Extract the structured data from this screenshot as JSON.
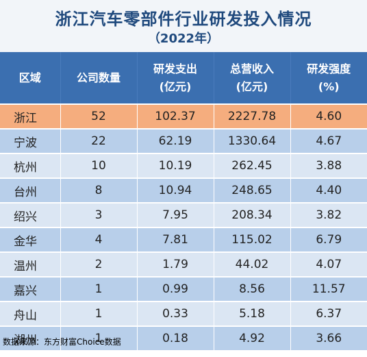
{
  "chart_data": {
    "type": "table",
    "title": "浙江汽车零部件行业研发投入情况",
    "subtitle": "（2022年）",
    "columns": [
      [
        "区域"
      ],
      [
        "公司数量"
      ],
      [
        "研发支出",
        "(亿元)"
      ],
      [
        "总营收入",
        "(亿元)"
      ],
      [
        "研发强度",
        "(%)"
      ]
    ],
    "rows": [
      [
        "浙江",
        "52",
        "102.37",
        "2227.78",
        "4.60"
      ],
      [
        "宁波",
        "22",
        "62.19",
        "1330.64",
        "4.67"
      ],
      [
        "杭州",
        "10",
        "10.19",
        "262.45",
        "3.88"
      ],
      [
        "台州",
        "8",
        "10.94",
        "248.65",
        "4.40"
      ],
      [
        "绍兴",
        "3",
        "7.95",
        "208.34",
        "3.82"
      ],
      [
        "金华",
        "4",
        "7.81",
        "115.02",
        "6.79"
      ],
      [
        "温州",
        "2",
        "1.79",
        "44.02",
        "4.07"
      ],
      [
        "嘉兴",
        "1",
        "0.99",
        "8.56",
        "11.57"
      ],
      [
        "舟山",
        "1",
        "0.33",
        "5.18",
        "6.37"
      ],
      [
        "湖州",
        "1",
        "0.18",
        "4.92",
        "3.66"
      ]
    ],
    "source": "数据来源：东方财富Choice数据"
  },
  "colors": {
    "title": "#1f497d",
    "header": "#3b6fb0",
    "highlight_row": "#f5ad7e",
    "row_light": "#dbe6f3",
    "row_dark": "#b8cfea"
  }
}
